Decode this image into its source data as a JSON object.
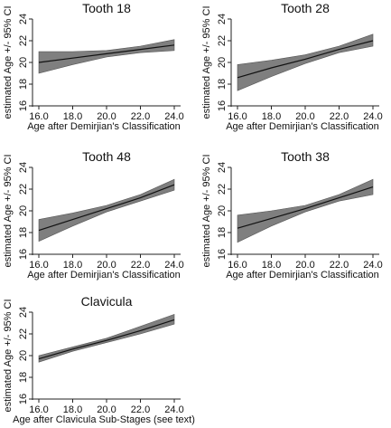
{
  "chart_data": [
    {
      "type": "line",
      "title": "Tooth 18",
      "xlabel": "Age after Demirjian's Classification",
      "ylabel": "estimated Age +/- 95% CI",
      "xlim": [
        16,
        24
      ],
      "ylim": [
        16,
        24
      ],
      "x_ticks": [
        "16.0",
        "18.0",
        "20.0",
        "22.0",
        "24.0"
      ],
      "y_ticks": [
        "16",
        "18",
        "20",
        "22",
        "24"
      ],
      "series": [
        {
          "x": [
            16,
            18,
            20,
            22,
            24
          ],
          "fit": [
            20.0,
            20.4,
            20.8,
            21.2,
            21.6
          ],
          "ci_lower": [
            19.0,
            19.8,
            20.5,
            20.9,
            21.1
          ],
          "ci_upper": [
            21.0,
            21.0,
            21.1,
            21.5,
            22.1
          ]
        }
      ]
    },
    {
      "type": "line",
      "title": "Tooth 28",
      "xlabel": "Age after Demirjian's Classification",
      "ylabel": "estimated Age +/- 95% CI",
      "xlim": [
        16,
        24
      ],
      "ylim": [
        16,
        24
      ],
      "x_ticks": [
        "16.0",
        "18.0",
        "20.0",
        "22.0",
        "24.0"
      ],
      "y_ticks": [
        "16",
        "18",
        "20",
        "22",
        "24"
      ],
      "series": [
        {
          "x": [
            16,
            18,
            20,
            22,
            24
          ],
          "fit": [
            18.6,
            19.5,
            20.3,
            21.2,
            22.0
          ],
          "ci_lower": [
            17.4,
            18.7,
            19.9,
            20.9,
            21.5
          ],
          "ci_upper": [
            19.8,
            20.2,
            20.7,
            21.5,
            22.6
          ]
        }
      ]
    },
    {
      "type": "line",
      "title": "Tooth 48",
      "xlabel": "Age after Demirjian's Classification",
      "ylabel": "estimated Age +/- 95% CI",
      "xlim": [
        16,
        24
      ],
      "ylim": [
        16,
        24
      ],
      "x_ticks": [
        "16.0",
        "18.0",
        "20.0",
        "22.0",
        "24.0"
      ],
      "y_ticks": [
        "16",
        "18",
        "20",
        "22",
        "24"
      ],
      "series": [
        {
          "x": [
            16,
            18,
            20,
            22,
            24
          ],
          "fit": [
            18.2,
            19.2,
            20.2,
            21.2,
            22.4
          ],
          "ci_lower": [
            17.2,
            18.6,
            19.9,
            20.9,
            21.9
          ],
          "ci_upper": [
            19.2,
            19.8,
            20.5,
            21.5,
            22.9
          ]
        }
      ]
    },
    {
      "type": "line",
      "title": "Tooth 38",
      "xlabel": "Age after Demirjian's Classification",
      "ylabel": "estimated Age +/- 95% CI",
      "xlim": [
        16,
        24
      ],
      "ylim": [
        16,
        24
      ],
      "x_ticks": [
        "16.0",
        "18.0",
        "20.0",
        "22.0",
        "24.0"
      ],
      "y_ticks": [
        "16",
        "18",
        "20",
        "22",
        "24"
      ],
      "series": [
        {
          "x": [
            16,
            18,
            20,
            22,
            24
          ],
          "fit": [
            18.4,
            19.3,
            20.2,
            21.2,
            22.2
          ],
          "ci_lower": [
            17.1,
            18.6,
            19.9,
            20.9,
            21.5
          ],
          "ci_upper": [
            19.6,
            20.0,
            20.5,
            21.5,
            22.9
          ]
        }
      ]
    },
    {
      "type": "line",
      "title": "Clavicula",
      "xlabel": "Age after Clavicula Sub-Stages (see text)",
      "ylabel": "estimated Age +/- 95% CI",
      "xlim": [
        16,
        24
      ],
      "ylim": [
        16,
        24
      ],
      "x_ticks": [
        "16.0",
        "18.0",
        "20.0",
        "22.0",
        "24.0"
      ],
      "y_ticks": [
        "16",
        "18",
        "20",
        "22",
        "24"
      ],
      "series": [
        {
          "x": [
            16,
            18,
            20,
            22,
            24
          ],
          "fit": [
            19.7,
            20.6,
            21.4,
            22.3,
            23.3
          ],
          "ci_lower": [
            19.4,
            20.4,
            21.2,
            22.0,
            22.9
          ],
          "ci_upper": [
            20.0,
            20.8,
            21.6,
            22.7,
            23.8
          ]
        }
      ]
    }
  ],
  "colors": {
    "band_fill": "#7f7f7f",
    "band_edge": "#555555",
    "fit_line": "#111111",
    "axis": "#222222"
  }
}
